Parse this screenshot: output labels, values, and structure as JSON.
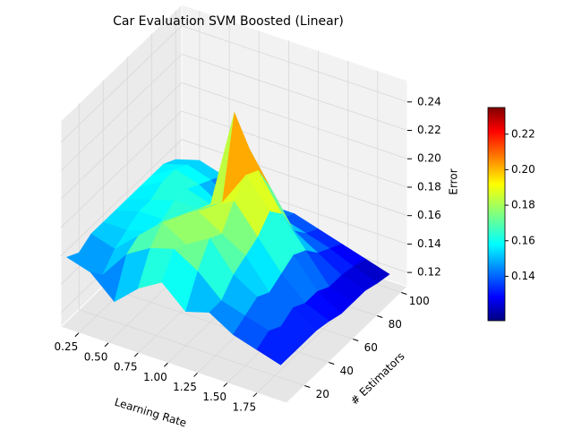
{
  "chart_data": {
    "type": "surface",
    "title": "Car Evaluation SVM Boosted (Linear)",
    "xlabel": "Learning Rate",
    "ylabel": "# Estimators",
    "zlabel": "Error",
    "x": [
      0.1,
      0.3,
      0.5,
      0.7,
      0.9,
      1.1,
      1.3,
      1.5,
      1.7,
      1.9
    ],
    "y": [
      10,
      20,
      30,
      40,
      50,
      60,
      70,
      80,
      90,
      100
    ],
    "z": [
      [
        0.155,
        0.15,
        0.135,
        0.15,
        0.16,
        0.145,
        0.15,
        0.14,
        0.135,
        0.13
      ],
      [
        0.15,
        0.14,
        0.16,
        0.17,
        0.175,
        0.165,
        0.15,
        0.145,
        0.14,
        0.13
      ],
      [
        0.155,
        0.15,
        0.165,
        0.18,
        0.17,
        0.18,
        0.16,
        0.15,
        0.135,
        0.13
      ],
      [
        0.155,
        0.155,
        0.16,
        0.175,
        0.185,
        0.175,
        0.165,
        0.145,
        0.14,
        0.13
      ],
      [
        0.155,
        0.16,
        0.16,
        0.17,
        0.18,
        0.19,
        0.17,
        0.15,
        0.135,
        0.128
      ],
      [
        0.155,
        0.16,
        0.165,
        0.165,
        0.175,
        0.2,
        0.18,
        0.155,
        0.135,
        0.125
      ],
      [
        0.155,
        0.165,
        0.165,
        0.16,
        0.23,
        0.195,
        0.17,
        0.15,
        0.13,
        0.125
      ],
      [
        0.155,
        0.165,
        0.16,
        0.15,
        0.2,
        0.175,
        0.15,
        0.14,
        0.13,
        0.125
      ],
      [
        0.155,
        0.16,
        0.155,
        0.14,
        0.15,
        0.145,
        0.14,
        0.135,
        0.128,
        0.122
      ],
      [
        0.15,
        0.155,
        0.15,
        0.135,
        0.14,
        0.14,
        0.135,
        0.13,
        0.125,
        0.12
      ]
    ],
    "xlim": [
      0.1,
      2.0
    ],
    "ylim": [
      5,
      105
    ],
    "zlim": [
      0.11,
      0.255
    ],
    "xticks": [
      0.25,
      {
        "value": 0.5,
        "label": "0.50"
      },
      0.75,
      {
        "value": 1.0,
        "label": "1.00"
      },
      1.25,
      {
        "value": 1.5,
        "label": "1.50"
      },
      1.75
    ],
    "yticks": [
      20,
      40,
      60,
      80,
      100
    ],
    "zticks": [
      0.12,
      0.14,
      0.16,
      0.18,
      {
        "value": 0.2,
        "label": "0.20"
      },
      0.22,
      0.24
    ],
    "colormap": "jet",
    "clim": [
      0.115,
      0.235
    ],
    "colorbar_ticks": [
      0.14,
      0.16,
      0.18,
      {
        "value": 0.2,
        "label": "0.20"
      },
      0.22
    ],
    "grid": true
  }
}
